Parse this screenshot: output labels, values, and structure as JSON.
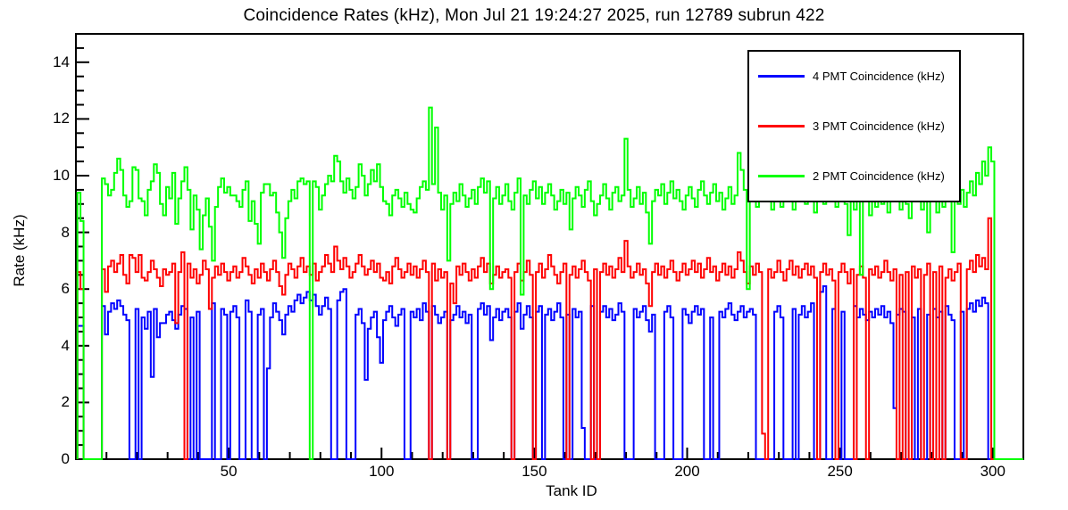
{
  "title": "Coincidence Rates (kHz), Mon Jul 21 19:24:27 2025, run 12789 subrun 422",
  "axes": {
    "x": {
      "label": "Tank ID",
      "min": 0,
      "max": 310,
      "major_ticks": [
        50,
        100,
        150,
        200,
        250,
        300
      ],
      "minor_step": 10,
      "grid": false
    },
    "y": {
      "label": "Rate (kHz)",
      "min": 0,
      "max": 15,
      "major_ticks": [
        0,
        2,
        4,
        6,
        8,
        10,
        12,
        14
      ],
      "minor_step": 0.5,
      "grid": false
    }
  },
  "legend": {
    "position": "top-right"
  },
  "chart_data": {
    "type": "line",
    "style": "step-histogram",
    "x_start": 1,
    "bin_width": 1,
    "title": "Coincidence Rates (kHz), Mon Jul 21 19:24:27 2025, run 12789 subrun 422",
    "xlabel": "Tank ID",
    "ylabel": "Rate (kHz)",
    "xlim": [
      0,
      310
    ],
    "ylim": [
      0,
      15
    ],
    "series": [
      {
        "name": "4 PMT Coincidence (kHz)",
        "color": "#0000ff",
        "values": [
          4.7,
          4.7,
          0,
          0,
          0,
          0,
          0,
          0,
          5.4,
          4.4,
          5.2,
          5.5,
          5.3,
          5.6,
          5.4,
          5.1,
          4.9,
          0,
          0,
          5.3,
          0,
          5.0,
          4.6,
          5.2,
          2.9,
          5.3,
          4.3,
          4.8,
          4.8,
          5.1,
          5.2,
          4.9,
          4.6,
          5.1,
          5.4,
          5.3,
          0,
          5.0,
          0,
          5.2,
          0,
          0,
          0,
          0,
          5.5,
          0,
          0,
          5.3,
          5.1,
          0,
          5.2,
          5.4,
          5.0,
          0,
          0,
          5.6,
          5.2,
          0,
          0,
          5.1,
          5.3,
          0,
          3.2,
          5.0,
          5.5,
          5.2,
          4.9,
          4.4,
          5.1,
          5.4,
          5.2,
          5.6,
          5.8,
          5.5,
          5.7,
          5.9,
          5.6,
          5.8,
          5.4,
          5.1,
          5.4,
          5.7,
          5.3,
          0,
          0,
          5.6,
          5.9,
          6.0,
          0,
          0,
          0,
          5.1,
          5.3,
          4.8,
          2.8,
          4.6,
          5.0,
          5.2,
          4.3,
          3.4,
          4.9,
          5.2,
          5.4,
          5.0,
          4.7,
          5.1,
          5.3,
          0,
          0,
          5.2,
          5.0,
          5.3,
          4.9,
          5.5,
          5.2,
          0,
          5.4,
          5.1,
          4.8,
          5.0,
          5.2,
          0,
          4.9,
          5.1,
          5.4,
          5.0,
          5.2,
          4.8,
          5.1,
          0,
          0,
          5.3,
          5.5,
          5.1,
          5.4,
          4.2,
          5.0,
          5.3,
          4.9,
          5.2,
          5.3,
          5.0,
          0,
          5.2,
          5.5,
          4.6,
          5.1,
          5.4,
          5.0,
          0,
          5.2,
          5.4,
          0,
          5.1,
          5.3,
          4.9,
          5.2,
          5.5,
          5.0,
          0,
          5.1,
          0,
          5.3,
          5.0,
          5.2,
          1.1,
          0,
          0,
          5.4,
          0,
          0,
          5.2,
          5.4,
          5.0,
          5.3,
          4.9,
          5.1,
          5.5,
          5.2,
          0,
          0,
          0,
          5.3,
          5.0,
          5.2,
          5.4,
          4.9,
          4.5,
          5.1,
          0,
          0,
          0,
          5.2,
          5.4,
          5.0,
          0,
          0,
          0,
          5.3,
          5.1,
          4.8,
          5.2,
          5.4,
          5.1,
          5.3,
          0,
          0,
          5.0,
          0,
          0,
          5.2,
          5.0,
          5.3,
          5.5,
          5.1,
          4.9,
          5.2,
          5.4,
          5.0,
          5.2,
          5.3,
          5.1,
          0,
          0,
          0,
          0,
          0,
          0,
          5.2,
          5.4,
          5.0,
          0,
          0,
          0,
          5.3,
          0,
          5.1,
          5.4,
          5.0,
          5.2,
          5.5,
          0,
          0,
          5.9,
          6.1,
          0,
          0,
          5.3,
          0,
          0,
          5.2,
          0,
          0,
          0,
          5.4,
          5.0,
          5.3,
          5.1,
          4.9,
          5.2,
          5.0,
          5.3,
          5.1,
          5.4,
          5.0,
          5.2,
          4.8,
          1.8,
          5.1,
          5.3,
          5.2,
          0,
          0,
          5.0,
          0,
          5.3,
          0,
          0,
          5.1,
          0,
          5.3,
          5.0,
          5.2,
          0,
          5.4,
          5.1,
          4.9,
          0,
          0,
          5.2,
          0,
          5.3,
          5.5,
          5.2,
          5.6,
          5.4,
          5.7,
          5.5,
          0,
          0
        ]
      },
      {
        "name": "3 PMT Coincidence (kHz)",
        "color": "#ff0000",
        "values": [
          6.6,
          6.0,
          0,
          0,
          0,
          0,
          0,
          0,
          6.7,
          5.9,
          6.8,
          7.0,
          6.6,
          6.9,
          7.2,
          6.5,
          6.2,
          7.2,
          7.1,
          6.6,
          7.2,
          6.4,
          6.3,
          6.6,
          7.0,
          6.7,
          6.4,
          6.1,
          6.7,
          6.5,
          6.6,
          6.9,
          4.8,
          6.6,
          7.3,
          0,
          6.9,
          6.4,
          6.7,
          6.2,
          6.5,
          7.0,
          6.7,
          5.3,
          6.4,
          6.8,
          6.5,
          6.9,
          6.6,
          6.3,
          6.6,
          6.8,
          6.4,
          6.6,
          7.1,
          6.8,
          6.5,
          6.2,
          6.7,
          6.4,
          6.9,
          6.6,
          6.3,
          6.7,
          7.0,
          6.6,
          6.1,
          5.8,
          6.5,
          6.9,
          6.7,
          6.4,
          6.8,
          7.1,
          6.6,
          6.8,
          6.5,
          6.9,
          6.3,
          6.6,
          6.8,
          7.2,
          6.9,
          6.6,
          7.5,
          7.0,
          6.7,
          7.1,
          6.8,
          6.4,
          6.6,
          6.9,
          7.2,
          6.8,
          6.5,
          6.7,
          7.0,
          6.6,
          6.9,
          6.4,
          6.3,
          6.6,
          6.2,
          6.8,
          7.1,
          6.7,
          6.4,
          6.6,
          6.9,
          6.5,
          6.8,
          6.4,
          6.7,
          7.0,
          6.6,
          0,
          6.9,
          6.3,
          6.7,
          6.4,
          6.6,
          0,
          6.2,
          5.5,
          6.8,
          6.5,
          6.9,
          6.6,
          6.3,
          6.7,
          6.4,
          6.8,
          7.1,
          6.6,
          6.9,
          6.2,
          6.5,
          6.8,
          6.4,
          6.6,
          6.7,
          6.4,
          0,
          6.6,
          6.9,
          6.3,
          6.6,
          7.0,
          6.5,
          0,
          6.6,
          6.9,
          6.4,
          6.7,
          7.2,
          6.8,
          6.5,
          6.2,
          6.6,
          6.9,
          0,
          6.5,
          6.8,
          6.4,
          6.7,
          7.0,
          6.6,
          6.3,
          0,
          6.7,
          0,
          6.6,
          6.9,
          6.5,
          6.8,
          6.4,
          6.7,
          7.1,
          6.6,
          7.7,
          6.8,
          6.4,
          6.6,
          6.9,
          6.5,
          6.7,
          6.2,
          5.4,
          6.6,
          6.9,
          6.5,
          6.8,
          6.4,
          6.7,
          7.0,
          6.6,
          6.3,
          6.6,
          6.9,
          6.5,
          6.7,
          7.0,
          6.6,
          6.9,
          6.4,
          6.7,
          7.1,
          6.6,
          6.8,
          6.3,
          6.6,
          6.9,
          6.5,
          6.8,
          6.4,
          6.7,
          7.3,
          7.0,
          6.6,
          6.2,
          6.8,
          6.5,
          6.9,
          6.6,
          0.9,
          0,
          6.7,
          6.4,
          6.6,
          7.0,
          6.6,
          6.3,
          6.7,
          7.0,
          6.5,
          6.8,
          6.4,
          6.7,
          6.9,
          6.5,
          6.8,
          6.4,
          0,
          6.6,
          6.9,
          6.5,
          6.7,
          6.3,
          0,
          6.6,
          6.9,
          6.6,
          6.2,
          6.7,
          0,
          6.5,
          6.8,
          6.4,
          0,
          6.7,
          6.5,
          6.8,
          6.4,
          6.6,
          7.0,
          6.6,
          6.3,
          6.7,
          0,
          6.5,
          0,
          6.6,
          0,
          6.8,
          6.4,
          6.7,
          0,
          6.5,
          6.9,
          0,
          6.6,
          0,
          6.8,
          0,
          6.4,
          6.7,
          6.3,
          6.6,
          6.9,
          0,
          0,
          6.7,
          7.0,
          6.6,
          7.2,
          6.8,
          7.1,
          6.7,
          8.5,
          0
        ]
      },
      {
        "name": "2 PMT Coincidence (kHz)",
        "color": "#00ff00",
        "values": [
          9.4,
          8.4,
          0,
          0,
          0,
          0,
          0,
          0,
          9.9,
          9.7,
          9.3,
          9.5,
          10.1,
          10.6,
          10.2,
          9.3,
          8.9,
          9.1,
          10.3,
          10.2,
          9.2,
          9.1,
          8.6,
          9.5,
          9.8,
          10.4,
          10.1,
          9.0,
          8.6,
          9.6,
          9.2,
          10.1,
          8.3,
          9.2,
          9.8,
          10.3,
          9.5,
          8.1,
          9.3,
          8.8,
          7.4,
          8.6,
          9.2,
          8.2,
          7.0,
          8.9,
          9.6,
          9.9,
          9.4,
          9.6,
          9.3,
          9.3,
          9.1,
          8.9,
          9.5,
          9.8,
          8.4,
          9.1,
          8.3,
          7.6,
          9.4,
          9.7,
          9.7,
          9.3,
          9.4,
          8.7,
          8.0,
          7.1,
          8.5,
          9.1,
          9.5,
          9.2,
          9.8,
          9.9,
          9.7,
          9.8,
          0,
          9.8,
          9.6,
          8.8,
          9.3,
          9.7,
          10.0,
          9.8,
          10.7,
          10.5,
          9.8,
          9.4,
          9.9,
          9.5,
          9.2,
          9.6,
          10.4,
          10.0,
          9.3,
          9.7,
          10.2,
          9.8,
          10.4,
          9.6,
          9.1,
          9.0,
          8.6,
          9.3,
          9.5,
          9.2,
          8.9,
          9.4,
          9.0,
          8.8,
          8.7,
          9.2,
          9.6,
          9.8,
          9.5,
          12.4,
          9.7,
          11.7,
          9.4,
          8.8,
          9.3,
          7.0,
          9.0,
          9.4,
          9.1,
          9.7,
          9.3,
          8.9,
          9.2,
          9.5,
          9.0,
          9.6,
          9.9,
          9.4,
          9.8,
          6.0,
          9.2,
          9.6,
          9.0,
          9.3,
          9.7,
          9.1,
          8.8,
          9.4,
          9.9,
          5.8,
          9.3,
          9.0,
          9.5,
          9.8,
          9.2,
          9.6,
          9.0,
          9.4,
          9.7,
          9.3,
          8.8,
          9.1,
          9.5,
          9.0,
          9.4,
          8.1,
          9.2,
          9.6,
          9.3,
          8.9,
          9.5,
          9.8,
          9.1,
          8.6,
          9.0,
          9.3,
          9.7,
          9.2,
          8.8,
          9.4,
          9.6,
          9.1,
          9.3,
          11.3,
          9.5,
          8.9,
          9.2,
          9.6,
          9.0,
          9.4,
          8.7,
          7.6,
          9.1,
          9.5,
          9.3,
          9.7,
          9.0,
          9.4,
          9.8,
          9.2,
          9.5,
          9.1,
          8.8,
          9.3,
          9.6,
          9.2,
          8.9,
          9.5,
          9.8,
          9.3,
          9.0,
          9.4,
          9.7,
          9.1,
          9.4,
          8.8,
          9.2,
          9.6,
          9.0,
          9.3,
          10.8,
          10.2,
          9.5,
          6.0,
          9.2,
          9.5,
          8.9,
          9.3,
          9.6,
          9.1,
          9.4,
          8.8,
          9.2,
          9.5,
          8.9,
          9.3,
          9.7,
          9.2,
          8.8,
          9.5,
          9.1,
          9.4,
          9.0,
          9.6,
          9.3,
          8.7,
          9.1,
          9.5,
          9.0,
          9.4,
          9.7,
          9.2,
          8.9,
          9.3,
          9.6,
          9.0,
          7.9,
          9.4,
          8.8,
          9.2,
          6.5,
          9.5,
          9.1,
          8.6,
          9.3,
          8.9,
          9.5,
          9.0,
          9.4,
          8.7,
          9.1,
          9.6,
          9.2,
          8.8,
          9.4,
          9.0,
          8.5,
          9.2,
          9.6,
          9.1,
          8.8,
          9.3,
          8.0,
          9.5,
          9.1,
          8.7,
          9.3,
          8.9,
          9.6,
          9.2,
          7.3,
          9.4,
          9.0,
          9.5,
          8.9,
          9.4,
          9.8,
          9.3,
          10.1,
          9.7,
          10.5,
          10.0,
          11.0,
          10.5
        ]
      }
    ]
  }
}
